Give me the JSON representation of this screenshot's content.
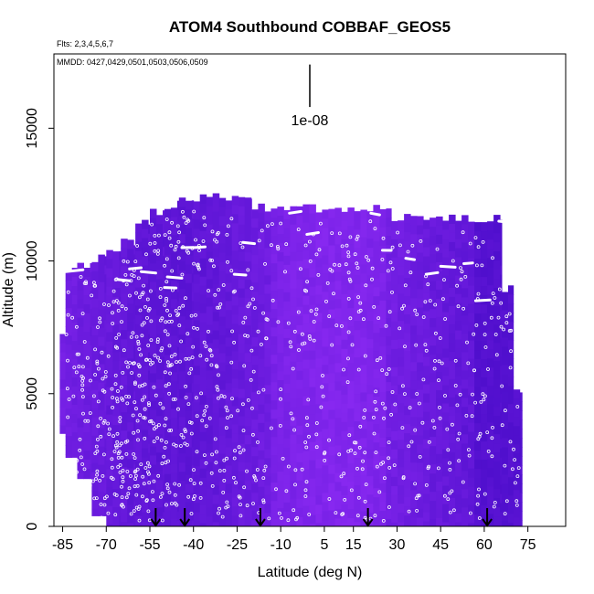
{
  "chart_data": {
    "type": "heatmap",
    "title": "ATOM4 Southbound COBBAF_GEOS5",
    "flights_note": "Flts: 2,3,4,5,6,7",
    "dates_note": "MMDD: 0427,0429,0501,0503,0506,0509",
    "xlabel": "Latitude (deg N)",
    "ylabel": "Altitude (m)",
    "xlim": [
      -88,
      88
    ],
    "ylim": [
      0,
      17800
    ],
    "x_ticks": [
      -85,
      -70,
      -55,
      -40,
      -25,
      -10,
      5,
      15,
      30,
      45,
      60,
      75
    ],
    "x_tick_labels": [
      "-85",
      "-70",
      "-55",
      "-40",
      "-25",
      "-10",
      "5",
      "15",
      "30",
      "45",
      "60",
      "75"
    ],
    "y_ticks": [
      0,
      5000,
      10000,
      15000
    ],
    "y_tick_labels": [
      "0",
      "5000",
      "10000",
      "15000"
    ],
    "scale_bar": {
      "label": "1e-08",
      "x": 0,
      "y_bottom": 15800,
      "y_top": 17400
    },
    "arrows_latitude": [
      -53,
      -43,
      -17,
      20,
      61
    ],
    "curtain_columns": [
      {
        "x0": -86,
        "x1": -84,
        "top": 7300,
        "base": 3500
      },
      {
        "x0": -84,
        "x1": -80,
        "top": 9700,
        "base": 2600
      },
      {
        "x0": -80,
        "x1": -75,
        "top": 9900,
        "base": 1800
      },
      {
        "x0": -75,
        "x1": -70,
        "top": 10100,
        "base": 400
      },
      {
        "x0": -70,
        "x1": -65,
        "top": 10300,
        "base": 0
      },
      {
        "x0": -65,
        "x1": -60,
        "top": 10700,
        "base": 0
      },
      {
        "x0": -60,
        "x1": -55,
        "top": 11400,
        "base": 0
      },
      {
        "x0": -55,
        "x1": -50,
        "top": 11900,
        "base": 0
      },
      {
        "x0": -50,
        "x1": -45,
        "top": 12100,
        "base": 0
      },
      {
        "x0": -45,
        "x1": -40,
        "top": 12400,
        "base": 0
      },
      {
        "x0": -40,
        "x1": -20,
        "top": 12400,
        "base": 0
      },
      {
        "x0": -20,
        "x1": 28,
        "top": 12000,
        "base": 0
      },
      {
        "x0": 28,
        "x1": 66,
        "top": 11600,
        "base": 0
      },
      {
        "x0": 66,
        "x1": 70,
        "top": 9000,
        "base": 0
      },
      {
        "x0": 70,
        "x1": 73,
        "top": 5200,
        "base": 0
      }
    ],
    "track_segments": [
      {
        "x0": -84,
        "x1": -78,
        "y": 9600
      },
      {
        "x0": -66,
        "x1": -62,
        "y": 9300
      },
      {
        "x0": -62,
        "x1": -58,
        "y": 9700
      },
      {
        "x0": -58,
        "x1": -53,
        "y": 9600
      },
      {
        "x0": -50,
        "x1": -46,
        "y": 9000
      },
      {
        "x0": -49,
        "x1": -44,
        "y": 9400
      },
      {
        "x0": -44,
        "x1": -40,
        "y": 10500
      },
      {
        "x0": -40,
        "x1": -36,
        "y": 10500
      },
      {
        "x0": -26,
        "x1": -22,
        "y": 9500
      },
      {
        "x0": -23,
        "x1": -19,
        "y": 10700
      },
      {
        "x0": -15,
        "x1": -11,
        "y": 12300
      },
      {
        "x0": -7,
        "x1": -3,
        "y": 11800
      },
      {
        "x0": -1,
        "x1": 3,
        "y": 11000
      },
      {
        "x0": 21,
        "x1": 24,
        "y": 11800
      },
      {
        "x0": 25,
        "x1": 28,
        "y": 10400
      },
      {
        "x0": 33,
        "x1": 36,
        "y": 10100
      },
      {
        "x0": 40,
        "x1": 44,
        "y": 9500
      },
      {
        "x0": 45,
        "x1": 50,
        "y": 9800
      },
      {
        "x0": 53,
        "x1": 56,
        "y": 9900
      },
      {
        "x0": 57,
        "x1": 62,
        "y": 8500
      },
      {
        "x0": 65,
        "x1": 68,
        "y": 11500
      }
    ]
  }
}
